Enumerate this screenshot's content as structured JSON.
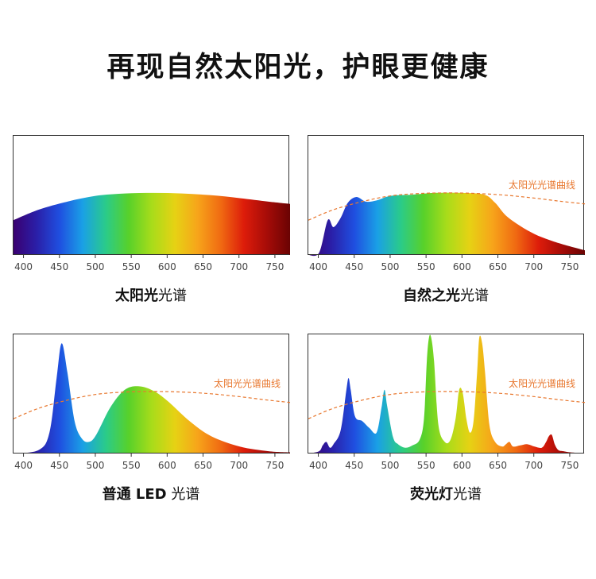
{
  "headline": "再现自然太阳光，护眼更健康",
  "chart_data": [
    {
      "type": "area",
      "caption_bold": "太阳光",
      "caption_rest": "光谱",
      "reference_label": "",
      "xlim": [
        385,
        770
      ],
      "ylim": [
        0,
        1
      ],
      "xticks": [
        400,
        450,
        500,
        550,
        600,
        650,
        700,
        750
      ],
      "series": [
        {
          "x": [
            385,
            420,
            460,
            500,
            540,
            580,
            620,
            660,
            700,
            740,
            770
          ],
          "y": [
            0.3,
            0.39,
            0.46,
            0.51,
            0.53,
            0.535,
            0.53,
            0.515,
            0.49,
            0.46,
            0.44
          ]
        }
      ]
    },
    {
      "type": "area",
      "caption_bold": "自然之光",
      "caption_rest": "光谱",
      "reference_label": "太阳光光谱曲线",
      "xlim": [
        385,
        770
      ],
      "ylim": [
        0,
        1
      ],
      "xticks": [
        400,
        450,
        500,
        550,
        600,
        650,
        700,
        750
      ],
      "series": [
        {
          "x": [
            385,
            400,
            412,
            420,
            430,
            440,
            452,
            465,
            480,
            500,
            530,
            560,
            600,
            630,
            645,
            660,
            680,
            700,
            720,
            740,
            770
          ],
          "y": [
            0.0,
            0.02,
            0.3,
            0.24,
            0.32,
            0.45,
            0.5,
            0.46,
            0.47,
            0.51,
            0.52,
            0.535,
            0.535,
            0.52,
            0.45,
            0.34,
            0.25,
            0.18,
            0.13,
            0.09,
            0.04
          ]
        },
        {
          "name": "reference",
          "x": [
            385,
            420,
            460,
            500,
            540,
            580,
            620,
            660,
            700,
            740,
            770
          ],
          "y": [
            0.3,
            0.39,
            0.46,
            0.51,
            0.53,
            0.535,
            0.53,
            0.515,
            0.49,
            0.46,
            0.44
          ]
        }
      ]
    },
    {
      "type": "area",
      "caption_bold": "普通 LED",
      "caption_rest": "光谱",
      "reference_label": "太阳光光谱曲线",
      "xlim": [
        385,
        770
      ],
      "ylim": [
        0,
        1
      ],
      "xticks": [
        400,
        450,
        500,
        550,
        600,
        650,
        700,
        750
      ],
      "series": [
        {
          "x": [
            385,
            420,
            435,
            445,
            452,
            460,
            470,
            480,
            490,
            500,
            520,
            540,
            560,
            580,
            600,
            630,
            660,
            700,
            740,
            770
          ],
          "y": [
            0.0,
            0.03,
            0.18,
            0.65,
            0.95,
            0.7,
            0.28,
            0.13,
            0.1,
            0.16,
            0.4,
            0.55,
            0.58,
            0.54,
            0.45,
            0.28,
            0.15,
            0.06,
            0.02,
            0.01
          ]
        },
        {
          "name": "reference",
          "x": [
            385,
            420,
            460,
            500,
            540,
            580,
            620,
            660,
            700,
            740,
            770
          ],
          "y": [
            0.3,
            0.39,
            0.46,
            0.51,
            0.53,
            0.535,
            0.53,
            0.515,
            0.49,
            0.46,
            0.44
          ]
        }
      ]
    },
    {
      "type": "area",
      "caption_bold": "荧光灯",
      "caption_rest": "光谱",
      "reference_label": "太阳光光谱曲线",
      "xlim": [
        385,
        770
      ],
      "ylim": [
        0,
        1
      ],
      "xticks": [
        400,
        450,
        500,
        550,
        600,
        650,
        700,
        750
      ],
      "series": [
        {
          "x": [
            385,
            400,
            405,
            410,
            415,
            420,
            430,
            438,
            441,
            444,
            450,
            460,
            470,
            480,
            487,
            491,
            495,
            503,
            510,
            520,
            530,
            540,
            546,
            550,
            553,
            556,
            560,
            566,
            575,
            583,
            590,
            595,
            600,
            605,
            610,
            615,
            620,
            623,
            627,
            631,
            637,
            645,
            655,
            660,
            665,
            670,
            680,
            690,
            700,
            710,
            716,
            720,
            724,
            728,
            733,
            740,
            750,
            770
          ],
          "y": [
            0.0,
            0.02,
            0.07,
            0.1,
            0.05,
            0.08,
            0.2,
            0.55,
            0.65,
            0.55,
            0.32,
            0.28,
            0.22,
            0.18,
            0.4,
            0.55,
            0.4,
            0.14,
            0.08,
            0.05,
            0.07,
            0.12,
            0.3,
            0.8,
            1.0,
            1.0,
            0.8,
            0.25,
            0.1,
            0.12,
            0.3,
            0.55,
            0.52,
            0.3,
            0.18,
            0.28,
            0.7,
            1.0,
            0.95,
            0.7,
            0.25,
            0.1,
            0.06,
            0.08,
            0.1,
            0.06,
            0.07,
            0.08,
            0.06,
            0.05,
            0.1,
            0.15,
            0.16,
            0.08,
            0.03,
            0.02,
            0.01,
            0.0
          ]
        },
        {
          "name": "reference",
          "x": [
            385,
            420,
            460,
            500,
            540,
            580,
            620,
            660,
            700,
            740,
            770
          ],
          "y": [
            0.3,
            0.39,
            0.46,
            0.51,
            0.53,
            0.535,
            0.53,
            0.515,
            0.49,
            0.46,
            0.44
          ]
        }
      ]
    }
  ],
  "colors": {
    "reference_line": "#e8772e",
    "spectrum_stops": [
      "#3a0070",
      "#2a1fa8",
      "#1f4fe0",
      "#1aa0e6",
      "#2acb8a",
      "#58d12a",
      "#a8dc1a",
      "#e6d214",
      "#f7a41a",
      "#f06a12",
      "#dd1c0a",
      "#a60c08",
      "#6a0303"
    ]
  }
}
